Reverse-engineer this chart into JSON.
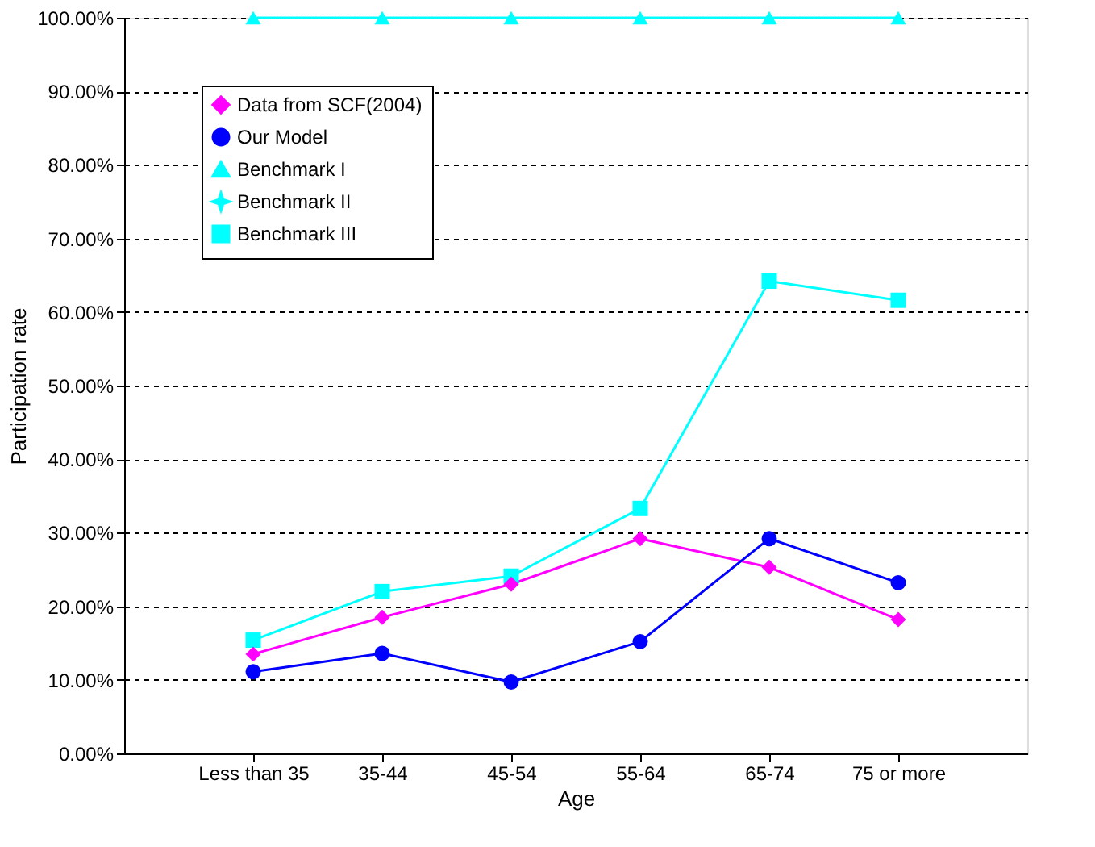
{
  "chart_data": {
    "type": "line",
    "xlabel": "Age",
    "ylabel": "Participation rate",
    "categories": [
      "Less than 35",
      "35-44",
      "45-54",
      "55-64",
      "65-74",
      "75 or more"
    ],
    "series": [
      {
        "name": "Data from SCF(2004)",
        "color": "#ff00ff",
        "marker": "diamond",
        "values": [
          13.5,
          18.5,
          23,
          29.2,
          25.3,
          18.2
        ]
      },
      {
        "name": "Our Model",
        "color": "#0000ff",
        "marker": "circle",
        "values": [
          11.1,
          13.6,
          9.7,
          15.2,
          29.2,
          23.2
        ]
      },
      {
        "name": "Benchmark I",
        "color": "#00ffff",
        "marker": "triangle",
        "values": [
          100,
          100,
          100,
          100,
          100,
          100
        ]
      },
      {
        "name": "Benchmark II",
        "color": "#00ffff",
        "marker": "star",
        "values": [
          null,
          null,
          null,
          null,
          null,
          null
        ]
      },
      {
        "name": "Benchmark III",
        "color": "#00ffff",
        "marker": "square",
        "values": [
          15.4,
          22,
          24.1,
          33.3,
          64.2,
          61.6
        ]
      }
    ],
    "ylim": [
      0,
      100
    ],
    "yticks": [
      {
        "value": 0,
        "label": "0.00%"
      },
      {
        "value": 10,
        "label": "10.00%"
      },
      {
        "value": 20,
        "label": "20.00%"
      },
      {
        "value": 30,
        "label": "30.00%"
      },
      {
        "value": 40,
        "label": "40.00%"
      },
      {
        "value": 50,
        "label": "50.00%"
      },
      {
        "value": 60,
        "label": "60.00%"
      },
      {
        "value": 70,
        "label": "70.00%"
      },
      {
        "value": 80,
        "label": "80.00%"
      },
      {
        "value": 90,
        "label": "90.00%"
      },
      {
        "value": 100,
        "label": "100.00%"
      }
    ],
    "grid": "y",
    "legend": "top left",
    "line_style": "solid"
  }
}
